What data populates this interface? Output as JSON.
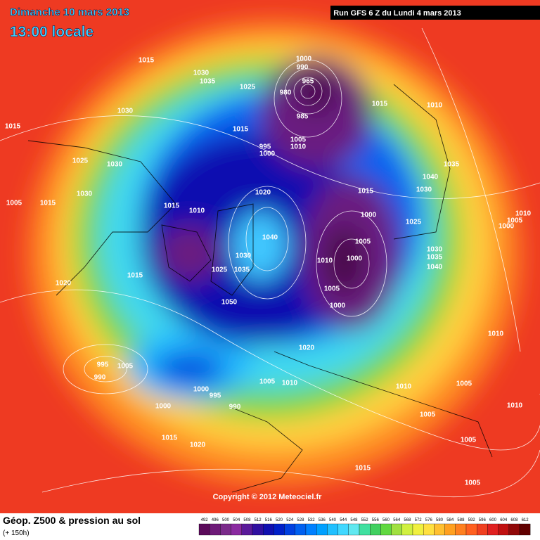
{
  "header": {
    "date": "Dimanche 10 mars 2013",
    "time": "13:00 locale",
    "run": "Run GFS 6 Z du Lundi 4 mars 2013"
  },
  "copyright": "Copyright © 2012 Meteociel.fr",
  "footer": {
    "title": "Géop. Z500 & pression au sol",
    "subtitle": "(+ 150h)"
  },
  "scale": [
    {
      "label": 492,
      "color": "#5a0a5a"
    },
    {
      "label": 496,
      "color": "#6e1a78"
    },
    {
      "label": 500,
      "color": "#7a2a8a"
    },
    {
      "label": 504,
      "color": "#8a2aa0"
    },
    {
      "label": 508,
      "color": "#5a1a9a"
    },
    {
      "label": 512,
      "color": "#3010a0"
    },
    {
      "label": 516,
      "color": "#1010b0"
    },
    {
      "label": 520,
      "color": "#0020c8"
    },
    {
      "label": 524,
      "color": "#0040e0"
    },
    {
      "label": 528,
      "color": "#0060f0"
    },
    {
      "label": 532,
      "color": "#0080ff"
    },
    {
      "label": 536,
      "color": "#00a0ff"
    },
    {
      "label": 540,
      "color": "#20c0ff"
    },
    {
      "label": 544,
      "color": "#40d8ff"
    },
    {
      "label": 548,
      "color": "#60e8f0"
    },
    {
      "label": 552,
      "color": "#40e0a0"
    },
    {
      "label": 556,
      "color": "#40d060"
    },
    {
      "label": 560,
      "color": "#60d840"
    },
    {
      "label": 564,
      "color": "#a0e040"
    },
    {
      "label": 568,
      "color": "#d0f040"
    },
    {
      "label": 572,
      "color": "#f0f040"
    },
    {
      "label": 576,
      "color": "#ffe040"
    },
    {
      "label": 580,
      "color": "#ffc030"
    },
    {
      "label": 584,
      "color": "#ffa020"
    },
    {
      "label": 588,
      "color": "#ff8020"
    },
    {
      "label": 592,
      "color": "#ff6020"
    },
    {
      "label": 596,
      "color": "#f04020"
    },
    {
      "label": 600,
      "color": "#e02020"
    },
    {
      "label": 604,
      "color": "#c01010"
    },
    {
      "label": 608,
      "color": "#900808"
    },
    {
      "label": 612,
      "color": "#600000"
    }
  ],
  "isobar_labels": [
    1015,
    1030,
    1035,
    1025,
    1030,
    1015,
    1000,
    990,
    965,
    980,
    985,
    1015,
    1010,
    1015,
    995,
    1000,
    1005,
    1010,
    1025,
    1030,
    1040,
    1035,
    1030,
    1015,
    1020,
    1030,
    1005,
    1015,
    1015,
    1010,
    1000,
    1025,
    1010,
    1005,
    1000,
    1040,
    1005,
    1030,
    1035,
    1040,
    1010,
    1000,
    1030,
    1025,
    1035,
    1015,
    1020,
    1005,
    1050,
    1000,
    1010,
    1020,
    995,
    1005,
    990,
    1000,
    995,
    1005,
    1010,
    1010,
    1005,
    990,
    1000,
    1005,
    1010,
    1015,
    1020,
    1005,
    1015,
    1005
  ]
}
